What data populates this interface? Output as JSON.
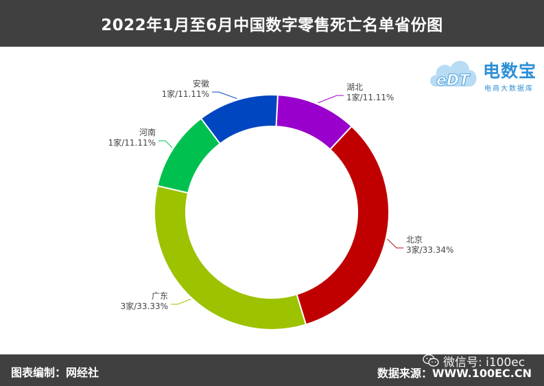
{
  "header": {
    "title": "2022年1月至6月中国数字零售死亡名单省份图"
  },
  "logo": {
    "mark": "eDT",
    "name": "电数宝",
    "tagline": "电商大数据库"
  },
  "watermark": {
    "text": "微信号: i100ec"
  },
  "footer": {
    "left": "图表编制：网经社",
    "right": "数据来源：WWW.100EC.CN"
  },
  "chart_data": {
    "type": "pie",
    "donut": true,
    "title": "2022年1月至6月中国数字零售死亡名单省份图",
    "slices": [
      {
        "name": "湖北",
        "count": 1,
        "value_label": "1家/11.11%",
        "percent": 11.11,
        "color": "#9900cc"
      },
      {
        "name": "北京",
        "count": 3,
        "value_label": "3家/33.34%",
        "percent": 33.34,
        "color": "#c00000"
      },
      {
        "name": "广东",
        "count": 3,
        "value_label": "3家/33.33%",
        "percent": 33.33,
        "color": "#9cc200"
      },
      {
        "name": "河南",
        "count": 1,
        "value_label": "1家/11.11%",
        "percent": 11.11,
        "color": "#00c050"
      },
      {
        "name": "安徽",
        "count": 1,
        "value_label": "1家/11.11%",
        "percent": 11.11,
        "color": "#0046c0"
      }
    ]
  }
}
